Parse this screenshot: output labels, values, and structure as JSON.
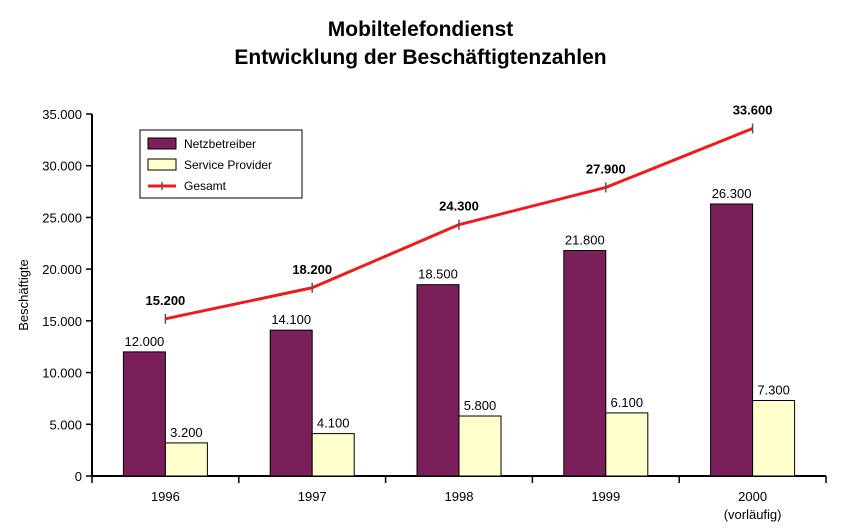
{
  "chart_data": {
    "type": "bar",
    "title": "Mobiltelefondienst",
    "subtitle": "Entwicklung der Beschäftigtenzahlen",
    "ylabel": "Beschäftigte",
    "xlabel": "",
    "ylim": [
      0,
      35000
    ],
    "yticks": [
      0,
      5000,
      10000,
      15000,
      20000,
      25000,
      30000,
      35000
    ],
    "ytick_labels": [
      "0",
      "5.000",
      "10.000",
      "15.000",
      "20.000",
      "25.000",
      "30.000",
      "35.000"
    ],
    "categories": [
      "1996",
      "1997",
      "1998",
      "1999",
      "2000"
    ],
    "category_notes": [
      "",
      "",
      "",
      "",
      "(vorläufig)"
    ],
    "grid": false,
    "legend_position": "top-left",
    "series": [
      {
        "name": "Netzbetreiber",
        "type": "bar",
        "color": "#7b1f5a",
        "values": [
          12000,
          14100,
          18500,
          21800,
          26300
        ],
        "labels": [
          "12.000",
          "14.100",
          "18.500",
          "21.800",
          "26.300"
        ]
      },
      {
        "name": "Service Provider",
        "type": "bar",
        "color": "#ffffcc",
        "values": [
          3200,
          4100,
          5800,
          6100,
          7300
        ],
        "labels": [
          "3.200",
          "4.100",
          "5.800",
          "6.100",
          "7.300"
        ]
      },
      {
        "name": "Gesamt",
        "type": "line",
        "color": "#ee1c1c",
        "values": [
          15200,
          18200,
          24300,
          27900,
          33600
        ],
        "labels": [
          "15.200",
          "18.200",
          "24.300",
          "27.900",
          "33.600"
        ]
      }
    ]
  }
}
